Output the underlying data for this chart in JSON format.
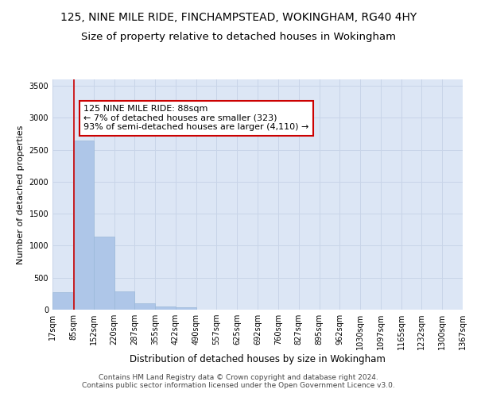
{
  "title": "125, NINE MILE RIDE, FINCHAMPSTEAD, WOKINGHAM, RG40 4HY",
  "subtitle": "Size of property relative to detached houses in Wokingham",
  "xlabel": "Distribution of detached houses by size in Wokingham",
  "ylabel": "Number of detached properties",
  "bar_edges": [
    17,
    85,
    152,
    220,
    287,
    355,
    422,
    490,
    557,
    625,
    692,
    760,
    827,
    895,
    962,
    1030,
    1097,
    1165,
    1232,
    1300,
    1367
  ],
  "bar_heights": [
    270,
    2640,
    1140,
    285,
    100,
    55,
    38,
    0,
    0,
    0,
    0,
    0,
    0,
    0,
    0,
    0,
    0,
    0,
    0,
    0
  ],
  "bar_color": "#aec6e8",
  "bar_edgecolor": "#9ab8d8",
  "property_size": 88,
  "vline_color": "#cc0000",
  "annotation_text": "125 NINE MILE RIDE: 88sqm\n← 7% of detached houses are smaller (323)\n93% of semi-detached houses are larger (4,110) →",
  "annotation_box_edgecolor": "#cc0000",
  "annotation_box_facecolor": "#ffffff",
  "ylim": [
    0,
    3600
  ],
  "yticks": [
    0,
    500,
    1000,
    1500,
    2000,
    2500,
    3000,
    3500
  ],
  "grid_color": "#c8d4e8",
  "background_color": "#dce6f5",
  "footer_text": "Contains HM Land Registry data © Crown copyright and database right 2024.\nContains public sector information licensed under the Open Government Licence v3.0.",
  "title_fontsize": 10,
  "subtitle_fontsize": 9.5,
  "xlabel_fontsize": 8.5,
  "ylabel_fontsize": 8,
  "tick_fontsize": 7,
  "annotation_fontsize": 8,
  "footer_fontsize": 6.5
}
